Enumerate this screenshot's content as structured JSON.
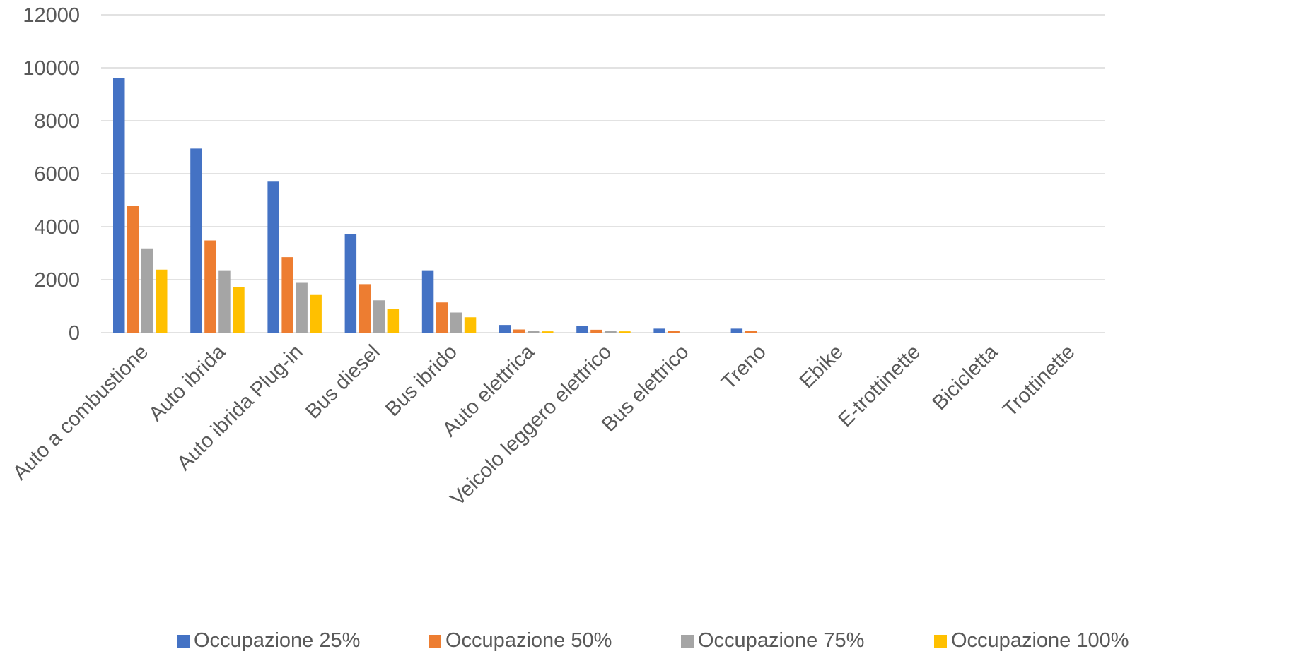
{
  "chart_data": {
    "type": "bar",
    "title": "",
    "xlabel": "",
    "ylabel": "",
    "ylim": [
      0,
      12000
    ],
    "yticks": [
      0,
      2000,
      4000,
      6000,
      8000,
      10000,
      12000
    ],
    "grid": true,
    "legend_position": "bottom",
    "categories": [
      "Auto a combustione",
      "Auto ibrida",
      "Auto ibrida Plug-in",
      "Bus diesel",
      "Bus ibrido",
      "Auto elettrica",
      "Veicolo leggero elettrico",
      "Bus elettrico",
      "Treno",
      "Ebike",
      "E-trottinette",
      "Bicicletta",
      "Trottinette"
    ],
    "series": [
      {
        "name": "Occupazione 25%",
        "color": "#4472c4",
        "values": [
          9600,
          6950,
          5700,
          3720,
          2330,
          290,
          250,
          150,
          150,
          0,
          0,
          0,
          0
        ]
      },
      {
        "name": "Occupazione 50%",
        "color": "#ed7d31",
        "values": [
          4800,
          3480,
          2850,
          1830,
          1140,
          120,
          110,
          60,
          60,
          0,
          0,
          0,
          0
        ]
      },
      {
        "name": "Occupazione 75%",
        "color": "#a5a5a5",
        "values": [
          3180,
          2330,
          1880,
          1220,
          760,
          70,
          60,
          0,
          0,
          0,
          0,
          0,
          0
        ]
      },
      {
        "name": "Occupazione 100%",
        "color": "#ffc000",
        "values": [
          2380,
          1730,
          1420,
          900,
          580,
          50,
          50,
          0,
          0,
          0,
          0,
          0,
          0
        ]
      }
    ]
  }
}
